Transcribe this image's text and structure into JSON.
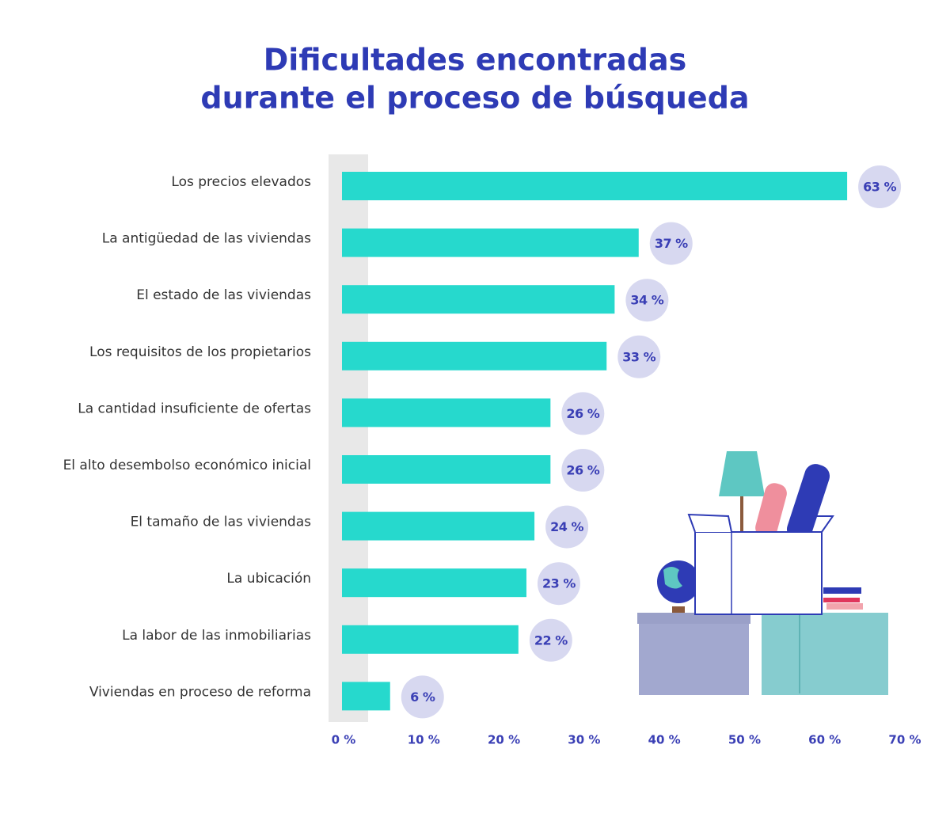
{
  "chart_data": {
    "type": "hbar",
    "title": [
      "Dificultades encontradas",
      "durante el proceso de búsqueda"
    ],
    "categories": [
      "Los precios elevados",
      "La antigüedad de las viviendas",
      "El estado de las viviendas",
      "Los requisitos de los propietarios",
      "La cantidad insuficiente de ofertas",
      "El alto desembolso económico inicial",
      "El tamaño de las viviendas",
      "La ubicación",
      "La labor de las inmobiliarias",
      "Viviendas en proceso de reforma"
    ],
    "values": [
      63,
      37,
      34,
      33,
      26,
      26,
      24,
      23,
      22,
      6
    ],
    "value_labels": [
      "63 %",
      "37 %",
      "34 %",
      "33 %",
      "26 %",
      "26 %",
      "24 %",
      "23 %",
      "22 %",
      "6 %"
    ],
    "color": "#26d9cd",
    "xlim": [
      0,
      70
    ],
    "xticks": [
      {
        "value": 0,
        "label": "0 %"
      },
      {
        "value": 10,
        "label": "10 %"
      },
      {
        "value": 20,
        "label": "20 %"
      },
      {
        "value": 30,
        "label": "30 %"
      },
      {
        "value": 40,
        "label": "40 %"
      },
      {
        "value": 50,
        "label": "50 %"
      },
      {
        "value": 60,
        "label": "60 %"
      },
      {
        "value": 70,
        "label": "70 %"
      }
    ]
  }
}
